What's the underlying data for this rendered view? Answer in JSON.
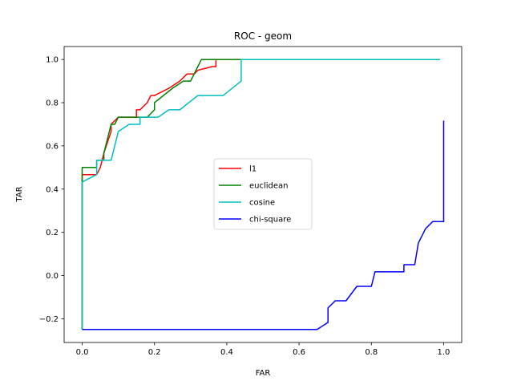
{
  "chart_data": {
    "type": "line",
    "title": "ROC - geom",
    "xlabel": "FAR",
    "ylabel": "TAR",
    "xlim": [
      -0.05,
      1.05
    ],
    "ylim": [
      -0.31,
      1.06
    ],
    "xticks": [
      0.0,
      0.2,
      0.4,
      0.6,
      0.8,
      1.0
    ],
    "xtick_labels": [
      "0.0",
      "0.2",
      "0.4",
      "0.6",
      "0.8",
      "1.0"
    ],
    "yticks": [
      -0.2,
      0.0,
      0.2,
      0.4,
      0.6,
      0.8,
      1.0
    ],
    "ytick_labels": [
      "−0.2",
      "0.0",
      "0.2",
      "0.4",
      "0.6",
      "0.8",
      "1.0"
    ],
    "grid": false,
    "legend_position": "center",
    "series": [
      {
        "name": "l1",
        "color": "#ff0000",
        "x": [
          0.0,
          0.0,
          0.0,
          0.04,
          0.05,
          0.06,
          0.08,
          0.08,
          0.1,
          0.15,
          0.15,
          0.16,
          0.18,
          0.19,
          0.2,
          0.24,
          0.27,
          0.29,
          0.31,
          0.32,
          0.36,
          0.37,
          0.37,
          0.99
        ],
        "y": [
          -0.25,
          0.433,
          0.467,
          0.467,
          0.5,
          0.567,
          0.667,
          0.7,
          0.733,
          0.733,
          0.767,
          0.767,
          0.8,
          0.833,
          0.833,
          0.867,
          0.9,
          0.933,
          0.933,
          0.95,
          0.967,
          0.967,
          1.0,
          1.0
        ]
      },
      {
        "name": "euclidean",
        "color": "#008000",
        "x": [
          0.0,
          0.0,
          0.0,
          0.04,
          0.04,
          0.06,
          0.06,
          0.08,
          0.09,
          0.1,
          0.12,
          0.16,
          0.18,
          0.2,
          0.2,
          0.25,
          0.28,
          0.3,
          0.32,
          0.33,
          0.99
        ],
        "y": [
          -0.25,
          0.433,
          0.5,
          0.5,
          0.533,
          0.533,
          0.567,
          0.7,
          0.7,
          0.733,
          0.733,
          0.733,
          0.733,
          0.767,
          0.8,
          0.867,
          0.9,
          0.9,
          0.967,
          1.0,
          1.0
        ]
      },
      {
        "name": "cosine",
        "color": "#00bfbf",
        "x": [
          0.0,
          0.0,
          0.0,
          0.04,
          0.04,
          0.08,
          0.1,
          0.13,
          0.16,
          0.16,
          0.21,
          0.24,
          0.27,
          0.32,
          0.39,
          0.44,
          0.44,
          0.99
        ],
        "y": [
          -0.25,
          0.433,
          0.433,
          0.467,
          0.533,
          0.533,
          0.667,
          0.7,
          0.7,
          0.733,
          0.733,
          0.767,
          0.767,
          0.833,
          0.833,
          0.9,
          1.0,
          1.0
        ]
      },
      {
        "name": "chi-square",
        "color": "#0000ff",
        "x": [
          0.0,
          0.65,
          0.68,
          0.68,
          0.7,
          0.73,
          0.76,
          0.8,
          0.81,
          0.89,
          0.89,
          0.92,
          0.93,
          0.95,
          0.97,
          1.0,
          1.0
        ],
        "y": [
          -0.25,
          -0.25,
          -0.217,
          -0.15,
          -0.117,
          -0.117,
          -0.05,
          -0.05,
          0.017,
          0.017,
          0.05,
          0.05,
          0.15,
          0.217,
          0.25,
          0.25,
          0.717
        ]
      }
    ]
  }
}
